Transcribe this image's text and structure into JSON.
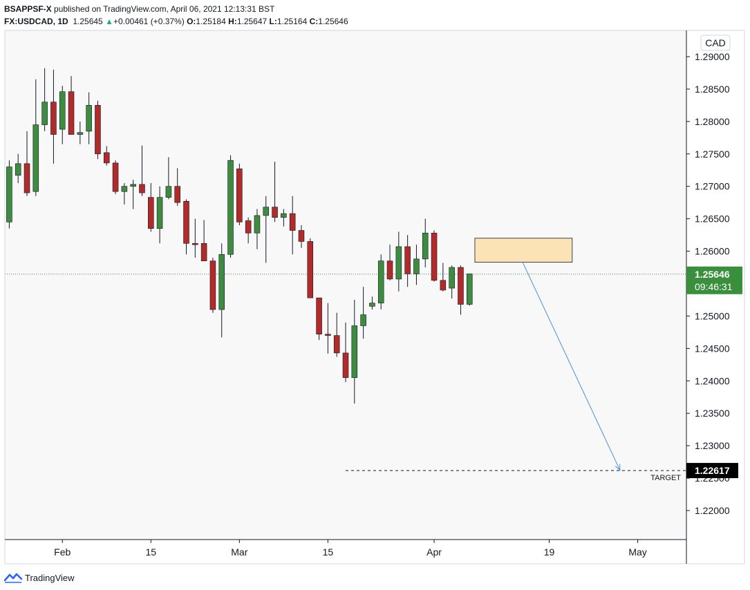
{
  "header": {
    "author": "BSAPPSF-X",
    "published_text": "published on TradingView.com, April 06, 2021 12:13:31 BST",
    "symbol": "FX:USDCAD, 1D",
    "last": "1.25645",
    "change_arrow": "▲",
    "change": "+0.00461 (+0.37%)",
    "o_label": "O:",
    "o_value": "1.25184",
    "h_label": "H:",
    "h_value": "1.25647",
    "l_label": "L:",
    "l_value": "1.25164",
    "c_label": "C:",
    "c_value": "1.25646"
  },
  "footer": {
    "brand": "TradingView",
    "logo_icon": "tradingview-logo-icon"
  },
  "colors": {
    "up": "#3d8c40",
    "down": "#b22b2b",
    "wick": "#131722",
    "price_badge": "#3a8f3c",
    "target_badge": "#000000",
    "zone_fill": "#fbe3b5",
    "zone_border": "#131722",
    "arrow": "#4a90d9",
    "current_line": "#3a8f3c",
    "plot_bg": "#f8f8f8"
  },
  "chart_data": {
    "type": "candlestick",
    "currency_label": "CAD",
    "ylim": [
      1.2148,
      1.2937
    ],
    "y_ticks": [
      "1.29000",
      "1.28500",
      "1.28000",
      "1.27500",
      "1.27000",
      "1.26500",
      "1.26000",
      "1.25500",
      "1.25000",
      "1.24500",
      "1.24000",
      "1.23500",
      "1.23000",
      "1.22500",
      "1.22000"
    ],
    "x_ticks": [
      {
        "label": "Feb",
        "day": 7
      },
      {
        "label": "15",
        "day": 17
      },
      {
        "label": "Mar",
        "day": 27
      },
      {
        "label": "15",
        "day": 37
      },
      {
        "label": "Apr",
        "day": 49
      },
      {
        "label": "19",
        "day": 62
      },
      {
        "label": "May",
        "day": 72
      }
    ],
    "x_range": [
      0.5,
      77.5
    ],
    "candles": [
      {
        "day": 1,
        "o": 1.2645,
        "h": 1.274,
        "l": 1.2635,
        "c": 1.273
      },
      {
        "day": 2,
        "o": 1.2717,
        "h": 1.275,
        "l": 1.2705,
        "c": 1.2735
      },
      {
        "day": 3,
        "o": 1.2735,
        "h": 1.2785,
        "l": 1.2685,
        "c": 1.269
      },
      {
        "day": 4,
        "o": 1.2692,
        "h": 1.2865,
        "l": 1.2685,
        "c": 1.2795
      },
      {
        "day": 5,
        "o": 1.2795,
        "h": 1.2882,
        "l": 1.2785,
        "c": 1.283
      },
      {
        "day": 6,
        "o": 1.283,
        "h": 1.288,
        "l": 1.2735,
        "c": 1.278
      },
      {
        "day": 7,
        "o": 1.2788,
        "h": 1.2855,
        "l": 1.2765,
        "c": 1.2846
      },
      {
        "day": 8,
        "o": 1.2846,
        "h": 1.287,
        "l": 1.278,
        "c": 1.278
      },
      {
        "day": 9,
        "o": 1.278,
        "h": 1.28,
        "l": 1.2765,
        "c": 1.2783
      },
      {
        "day": 10,
        "o": 1.2785,
        "h": 1.2845,
        "l": 1.2765,
        "c": 1.2825
      },
      {
        "day": 11,
        "o": 1.2825,
        "h": 1.2832,
        "l": 1.2742,
        "c": 1.275
      },
      {
        "day": 12,
        "o": 1.2752,
        "h": 1.2762,
        "l": 1.2732,
        "c": 1.2736
      },
      {
        "day": 13,
        "o": 1.2736,
        "h": 1.274,
        "l": 1.2688,
        "c": 1.2692
      },
      {
        "day": 14,
        "o": 1.2692,
        "h": 1.2705,
        "l": 1.2672,
        "c": 1.27
      },
      {
        "day": 15,
        "o": 1.27,
        "h": 1.271,
        "l": 1.2665,
        "c": 1.2703
      },
      {
        "day": 16,
        "o": 1.2703,
        "h": 1.2763,
        "l": 1.2685,
        "c": 1.269
      },
      {
        "day": 17,
        "o": 1.2683,
        "h": 1.2705,
        "l": 1.263,
        "c": 1.2635
      },
      {
        "day": 18,
        "o": 1.2635,
        "h": 1.27,
        "l": 1.2612,
        "c": 1.2683
      },
      {
        "day": 19,
        "o": 1.2683,
        "h": 1.2745,
        "l": 1.268,
        "c": 1.27
      },
      {
        "day": 20,
        "o": 1.27,
        "h": 1.2728,
        "l": 1.267,
        "c": 1.2675
      },
      {
        "day": 21,
        "o": 1.2677,
        "h": 1.268,
        "l": 1.2595,
        "c": 1.2612
      },
      {
        "day": 22,
        "o": 1.2612,
        "h": 1.265,
        "l": 1.259,
        "c": 1.261
      },
      {
        "day": 23,
        "o": 1.2612,
        "h": 1.2648,
        "l": 1.259,
        "c": 1.2585
      },
      {
        "day": 24,
        "o": 1.2585,
        "h": 1.259,
        "l": 1.2505,
        "c": 1.251
      },
      {
        "day": 25,
        "o": 1.251,
        "h": 1.2612,
        "l": 1.2467,
        "c": 1.2595
      },
      {
        "day": 26,
        "o": 1.2595,
        "h": 1.2748,
        "l": 1.259,
        "c": 1.274
      },
      {
        "day": 27,
        "o": 1.2727,
        "h": 1.2735,
        "l": 1.264,
        "c": 1.2645
      },
      {
        "day": 28,
        "o": 1.2647,
        "h": 1.2652,
        "l": 1.2612,
        "c": 1.2628
      },
      {
        "day": 29,
        "o": 1.2628,
        "h": 1.2665,
        "l": 1.2603,
        "c": 1.2655
      },
      {
        "day": 30,
        "o": 1.2655,
        "h": 1.2685,
        "l": 1.2582,
        "c": 1.2668
      },
      {
        "day": 31,
        "o": 1.2668,
        "h": 1.2738,
        "l": 1.2645,
        "c": 1.2652
      },
      {
        "day": 32,
        "o": 1.2652,
        "h": 1.2665,
        "l": 1.2638,
        "c": 1.2658
      },
      {
        "day": 33,
        "o": 1.2658,
        "h": 1.2685,
        "l": 1.2595,
        "c": 1.2632
      },
      {
        "day": 34,
        "o": 1.2632,
        "h": 1.264,
        "l": 1.2605,
        "c": 1.2615
      },
      {
        "day": 35,
        "o": 1.2615,
        "h": 1.262,
        "l": 1.2528,
        "c": 1.2528
      },
      {
        "day": 36,
        "o": 1.2528,
        "h": 1.2528,
        "l": 1.2463,
        "c": 1.2472
      },
      {
        "day": 37,
        "o": 1.2472,
        "h": 1.252,
        "l": 1.2442,
        "c": 1.247
      },
      {
        "day": 38,
        "o": 1.247,
        "h": 1.2505,
        "l": 1.2437,
        "c": 1.2443
      },
      {
        "day": 39,
        "o": 1.2443,
        "h": 1.249,
        "l": 1.2398,
        "c": 1.2405
      },
      {
        "day": 40,
        "o": 1.2405,
        "h": 1.2525,
        "l": 1.2365,
        "c": 1.2485
      },
      {
        "day": 41,
        "o": 1.2485,
        "h": 1.2545,
        "l": 1.2465,
        "c": 1.2502
      },
      {
        "day": 42,
        "o": 1.2515,
        "h": 1.253,
        "l": 1.251,
        "c": 1.252
      },
      {
        "day": 43,
        "o": 1.252,
        "h": 1.2595,
        "l": 1.251,
        "c": 1.2585
      },
      {
        "day": 44,
        "o": 1.2585,
        "h": 1.261,
        "l": 1.2555,
        "c": 1.2557
      },
      {
        "day": 45,
        "o": 1.2557,
        "h": 1.263,
        "l": 1.2538,
        "c": 1.2607
      },
      {
        "day": 46,
        "o": 1.2607,
        "h": 1.2625,
        "l": 1.2545,
        "c": 1.2565
      },
      {
        "day": 47,
        "o": 1.2565,
        "h": 1.261,
        "l": 1.2548,
        "c": 1.2588
      },
      {
        "day": 48,
        "o": 1.2588,
        "h": 1.265,
        "l": 1.2575,
        "c": 1.2628
      },
      {
        "day": 49,
        "o": 1.2628,
        "h": 1.2632,
        "l": 1.2553,
        "c": 1.2555
      },
      {
        "day": 50,
        "o": 1.2555,
        "h": 1.2582,
        "l": 1.2538,
        "c": 1.254
      },
      {
        "day": 51,
        "o": 1.2543,
        "h": 1.2578,
        "l": 1.2527,
        "c": 1.2575
      },
      {
        "day": 52,
        "o": 1.2575,
        "h": 1.2578,
        "l": 1.2502,
        "c": 1.2518
      },
      {
        "day": 53,
        "o": 1.2518,
        "h": 1.2565,
        "l": 1.2516,
        "c": 1.2565
      }
    ],
    "current_price": {
      "value": 1.25646,
      "label": "1.25646",
      "countdown": "09:46:31"
    },
    "zone": {
      "day_start": 53.6,
      "day_end": 64.6,
      "top": 1.262,
      "bottom": 1.2583
    },
    "arrow": {
      "from_day": 59,
      "from_price": 1.2583,
      "to_day": 70,
      "to_price": 1.2262
    },
    "target": {
      "value": 1.22617,
      "label": "1.22617",
      "text": "TARGET",
      "day_start": 39,
      "day_end": 77.5
    }
  }
}
